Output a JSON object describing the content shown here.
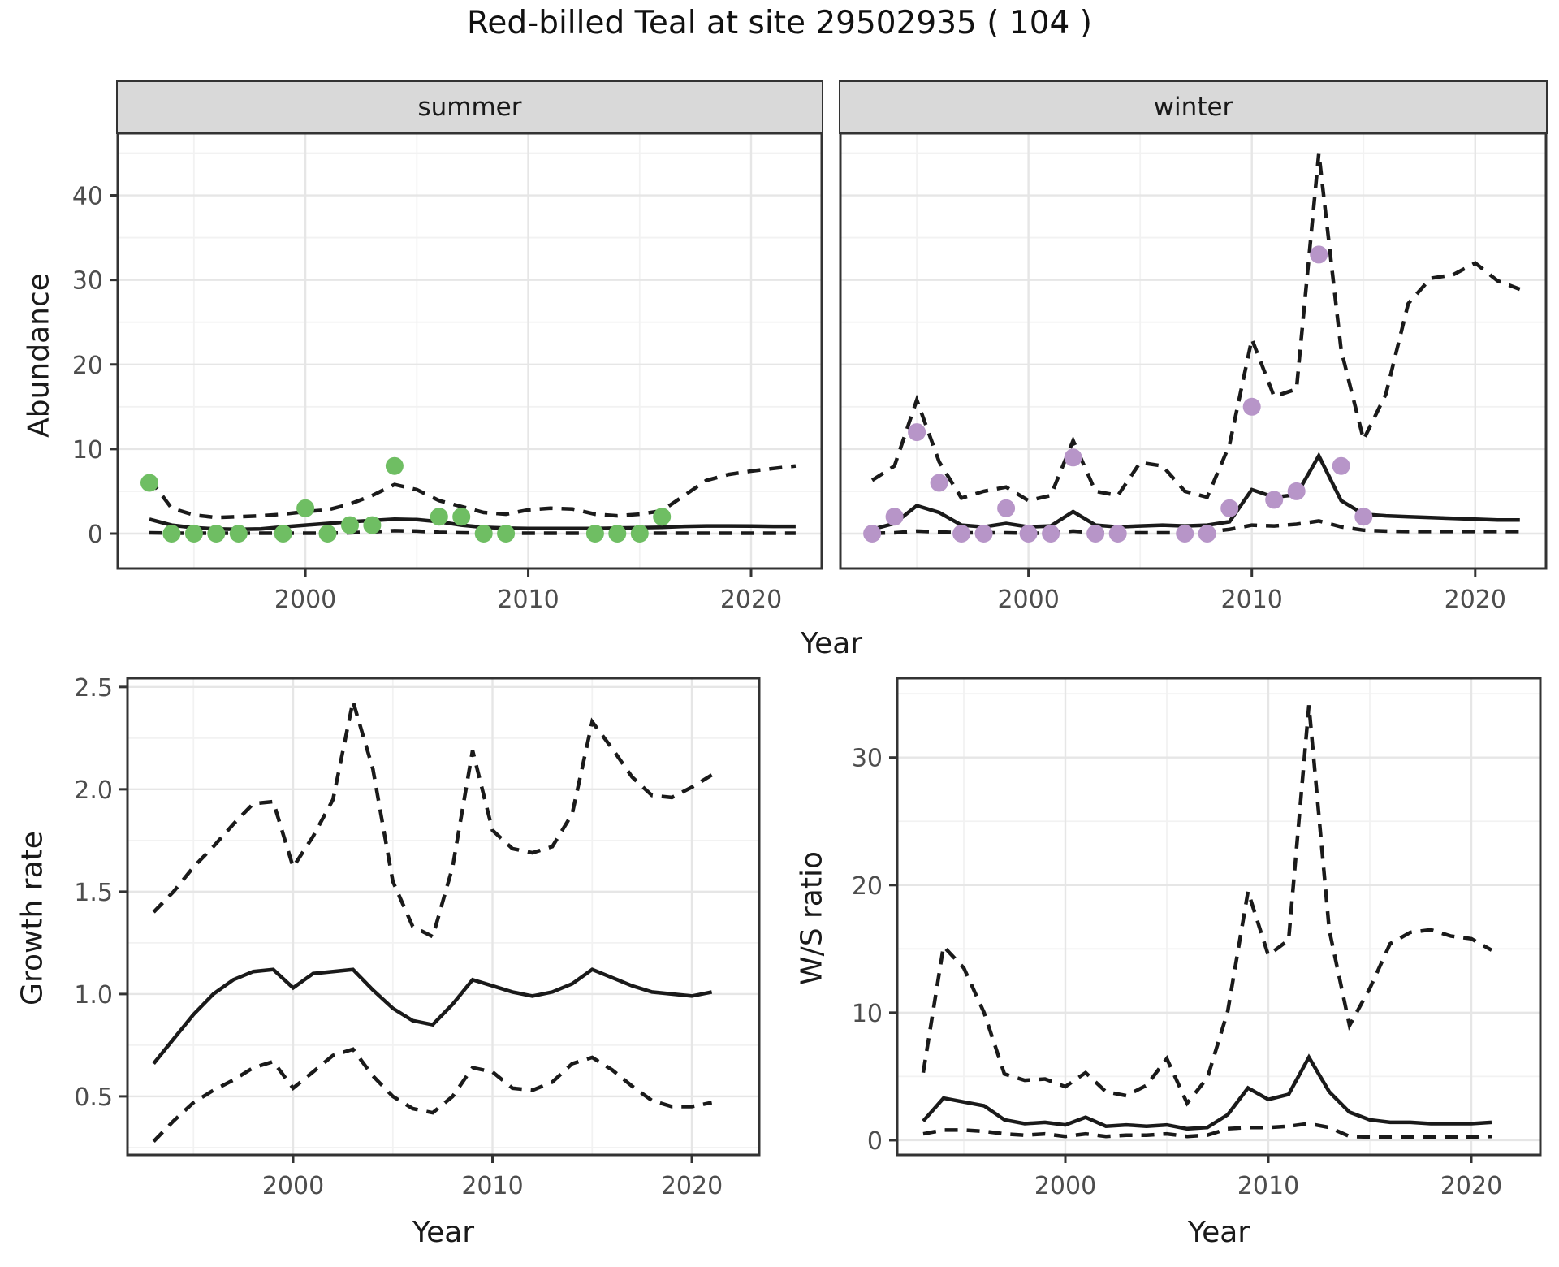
{
  "title": "Red-billed Teal at site 29502935 ( 104 )",
  "facets": {
    "summer": "summer",
    "winter": "winter"
  },
  "axes": {
    "abundance_label": "Abundance",
    "growth_label": "Growth rate",
    "ws_label": "W/S ratio",
    "year_label_top": "Year",
    "year_label_growth": "Year",
    "year_label_ws": "Year"
  },
  "colors": {
    "summer_points": "#6FBE63",
    "winter_points": "#B795C8",
    "line": "#1a1a1a",
    "strip_bg": "#d9d9d9",
    "grid_major": "#e6e6e6",
    "grid_minor": "#f2f2f2",
    "panel_border": "#333333",
    "tick_text": "#4d4d4d"
  },
  "chart_data": [
    {
      "id": "abundance-summer",
      "type": "line",
      "title": "summer",
      "xlabel": "Year",
      "ylabel": "Abundance",
      "xlim": [
        1991.58,
        2023.17
      ],
      "ylim": [
        -4.13,
        47.35
      ],
      "x_ticks": [
        2000,
        2010,
        2020
      ],
      "x_tick_labels": [
        "2000",
        "2010",
        "2020"
      ],
      "x_minor_ticks": [
        1995,
        2005,
        2015
      ],
      "y_ticks": [
        0,
        10,
        20,
        30,
        40
      ],
      "y_tick_labels": [
        "0",
        "10",
        "20",
        "30",
        "40"
      ],
      "y_minor_ticks": [
        5,
        15,
        25,
        35,
        45
      ],
      "show_y_tick_labels": true,
      "years": [
        1993,
        1994,
        1995,
        1996,
        1997,
        1998,
        1999,
        2000,
        2001,
        2002,
        2003,
        2004,
        2005,
        2006,
        2007,
        2008,
        2009,
        2010,
        2011,
        2012,
        2013,
        2014,
        2015,
        2016,
        2017,
        2018,
        2019,
        2020,
        2021,
        2022
      ],
      "series": [
        {
          "name": "upper_ci",
          "style": "dashed",
          "values": [
            6.5,
            3.0,
            2.2,
            1.9,
            2.0,
            2.1,
            2.3,
            2.6,
            2.8,
            3.5,
            4.5,
            5.8,
            5.2,
            3.9,
            3.2,
            2.5,
            2.3,
            2.8,
            3.0,
            2.9,
            2.3,
            2.1,
            2.3,
            2.7,
            4.5,
            6.3,
            7.0,
            7.4,
            7.7,
            8.0
          ]
        },
        {
          "name": "fitted_mean",
          "style": "solid",
          "values": [
            1.7,
            1.0,
            0.7,
            0.55,
            0.5,
            0.55,
            0.8,
            1.0,
            1.2,
            1.4,
            1.55,
            1.7,
            1.65,
            1.4,
            1.0,
            0.75,
            0.65,
            0.6,
            0.6,
            0.6,
            0.6,
            0.65,
            0.7,
            0.75,
            0.85,
            0.9,
            0.9,
            0.88,
            0.85,
            0.85
          ]
        },
        {
          "name": "lower_ci",
          "style": "dashed",
          "values": [
            0.1,
            0.05,
            0.05,
            0.05,
            0.05,
            0.05,
            0.05,
            0.05,
            0.05,
            0.1,
            0.2,
            0.35,
            0.3,
            0.15,
            0.1,
            0.05,
            0.05,
            0.05,
            0.05,
            0.05,
            0.05,
            0.05,
            0.05,
            0.05,
            0.05,
            0.05,
            0.05,
            0.05,
            0.05,
            0.05
          ]
        }
      ],
      "points": {
        "name": "observed-counts-summer",
        "color_key": "summer_points",
        "x": [
          1993,
          1994,
          1995,
          1996,
          1997,
          1999,
          2000,
          2001,
          2002,
          2003,
          2004,
          2006,
          2007,
          2008,
          2009,
          2013,
          2014,
          2015,
          2016
        ],
        "y": [
          6,
          0,
          0,
          0,
          0,
          0,
          3,
          0,
          1,
          1,
          8,
          2,
          2,
          0,
          0,
          0,
          0,
          0,
          2
        ]
      }
    },
    {
      "id": "abundance-winter",
      "type": "line",
      "title": "winter",
      "xlabel": "Year",
      "ylabel": "Abundance",
      "xlim": [
        1991.58,
        2023.17
      ],
      "ylim": [
        -4.13,
        47.35
      ],
      "x_ticks": [
        2000,
        2010,
        2020
      ],
      "x_tick_labels": [
        "2000",
        "2010",
        "2020"
      ],
      "x_minor_ticks": [
        1995,
        2005,
        2015
      ],
      "y_ticks": [
        0,
        10,
        20,
        30,
        40
      ],
      "y_tick_labels": [
        "0",
        "10",
        "20",
        "30",
        "40"
      ],
      "y_minor_ticks": [
        5,
        15,
        25,
        35,
        45
      ],
      "show_y_tick_labels": false,
      "years": [
        1993,
        1994,
        1995,
        1996,
        1997,
        1998,
        1999,
        2000,
        2001,
        2002,
        2003,
        2004,
        2005,
        2006,
        2007,
        2008,
        2009,
        2010,
        2011,
        2012,
        2013,
        2014,
        2015,
        2016,
        2017,
        2018,
        2019,
        2020,
        2021,
        2022
      ],
      "series": [
        {
          "name": "upper_ci",
          "style": "dashed",
          "values": [
            6.3,
            8.0,
            15.8,
            8.5,
            4.2,
            5.0,
            5.5,
            3.9,
            4.5,
            11.0,
            5.0,
            4.5,
            8.4,
            8.0,
            5.0,
            4.3,
            10.5,
            23.0,
            16.2,
            17.1,
            45.0,
            21.7,
            11.1,
            16.5,
            27.2,
            30.2,
            30.6,
            32.0,
            29.9,
            28.9
          ]
        },
        {
          "name": "fitted_mean",
          "style": "solid",
          "values": [
            0.5,
            1.2,
            3.3,
            2.5,
            1.0,
            0.8,
            1.2,
            0.8,
            0.9,
            2.6,
            1.0,
            0.8,
            0.9,
            1.0,
            0.9,
            1.0,
            1.4,
            5.2,
            4.3,
            4.6,
            9.2,
            3.9,
            2.3,
            2.1,
            2.0,
            1.9,
            1.8,
            1.7,
            1.6,
            1.6
          ]
        },
        {
          "name": "lower_ci",
          "style": "dashed",
          "values": [
            0.05,
            0.1,
            0.3,
            0.2,
            0.1,
            0.1,
            0.1,
            0.05,
            0.05,
            0.3,
            0.1,
            0.1,
            0.1,
            0.1,
            0.1,
            0.2,
            0.5,
            1.0,
            0.9,
            1.1,
            1.5,
            0.8,
            0.4,
            0.3,
            0.25,
            0.25,
            0.25,
            0.25,
            0.25,
            0.25
          ]
        }
      ],
      "points": {
        "name": "observed-counts-winter",
        "color_key": "winter_points",
        "x": [
          1993,
          1994,
          1995,
          1996,
          1997,
          1998,
          1999,
          2000,
          2001,
          2002,
          2003,
          2004,
          2007,
          2008,
          2009,
          2010,
          2011,
          2012,
          2013,
          2014,
          2015
        ],
        "y": [
          0,
          2,
          12,
          6,
          0,
          0,
          3,
          0,
          0,
          9,
          0,
          0,
          0,
          0,
          3,
          15,
          4,
          5,
          33,
          8,
          2
        ]
      }
    },
    {
      "id": "growth-rate",
      "type": "line",
      "title": "",
      "xlabel": "Year",
      "ylabel": "Growth rate",
      "xlim": [
        1991.69,
        2023.38
      ],
      "ylim": [
        0.214,
        2.543
      ],
      "x_ticks": [
        2000,
        2010,
        2020
      ],
      "x_tick_labels": [
        "2000",
        "2010",
        "2020"
      ],
      "x_minor_ticks": [
        1995,
        2005,
        2015
      ],
      "y_ticks": [
        0.5,
        1.0,
        1.5,
        2.0,
        2.5
      ],
      "y_tick_labels": [
        "0.5",
        "1.0",
        "1.5",
        "2.0",
        "2.5"
      ],
      "y_minor_ticks": [
        0.25,
        0.75,
        1.25,
        1.75,
        2.25
      ],
      "show_y_tick_labels": true,
      "years": [
        1993,
        1994,
        1995,
        1996,
        1997,
        1998,
        1999,
        2000,
        2001,
        2002,
        2003,
        2004,
        2005,
        2006,
        2007,
        2008,
        2009,
        2010,
        2011,
        2012,
        2013,
        2014,
        2015,
        2016,
        2017,
        2018,
        2019,
        2020,
        2021
      ],
      "series": [
        {
          "name": "upper_ci",
          "style": "dashed",
          "values": [
            1.4,
            1.5,
            1.62,
            1.72,
            1.83,
            1.93,
            1.94,
            1.62,
            1.77,
            1.95,
            2.43,
            2.1,
            1.55,
            1.33,
            1.28,
            1.62,
            2.19,
            1.8,
            1.71,
            1.69,
            1.72,
            1.88,
            2.33,
            2.2,
            2.06,
            1.97,
            1.96,
            2.01,
            2.07
          ]
        },
        {
          "name": "fitted_mean",
          "style": "solid",
          "values": [
            0.66,
            0.78,
            0.9,
            1.0,
            1.07,
            1.11,
            1.12,
            1.03,
            1.1,
            1.11,
            1.12,
            1.02,
            0.93,
            0.87,
            0.85,
            0.95,
            1.07,
            1.04,
            1.01,
            0.99,
            1.01,
            1.05,
            1.12,
            1.08,
            1.04,
            1.01,
            1.0,
            0.99,
            1.01
          ]
        },
        {
          "name": "lower_ci",
          "style": "dashed",
          "values": [
            0.28,
            0.38,
            0.47,
            0.53,
            0.58,
            0.64,
            0.67,
            0.54,
            0.62,
            0.7,
            0.73,
            0.6,
            0.5,
            0.44,
            0.42,
            0.5,
            0.64,
            0.62,
            0.54,
            0.53,
            0.57,
            0.66,
            0.69,
            0.63,
            0.55,
            0.48,
            0.45,
            0.45,
            0.47
          ]
        }
      ],
      "points": null
    },
    {
      "id": "ws-ratio",
      "type": "line",
      "title": "",
      "xlabel": "Year",
      "ylabel": "W/S ratio",
      "xlim": [
        1991.72,
        2023.4
      ],
      "ylim": [
        -1.15,
        36.22
      ],
      "x_ticks": [
        2000,
        2010,
        2020
      ],
      "x_tick_labels": [
        "2000",
        "2010",
        "2020"
      ],
      "x_minor_ticks": [
        1995,
        2005,
        2015
      ],
      "y_ticks": [
        0,
        10,
        20,
        30
      ],
      "y_tick_labels": [
        "0",
        "10",
        "20",
        "30"
      ],
      "y_minor_ticks": [
        5,
        15,
        25,
        35
      ],
      "show_y_tick_labels": true,
      "years": [
        1993,
        1994,
        1995,
        1996,
        1997,
        1998,
        1999,
        2000,
        2001,
        2002,
        2003,
        2004,
        2005,
        2006,
        2007,
        2008,
        2009,
        2010,
        2011,
        2012,
        2013,
        2014,
        2015,
        2016,
        2017,
        2018,
        2019,
        2020,
        2021
      ],
      "series": [
        {
          "name": "upper_ci",
          "style": "dashed",
          "values": [
            5.3,
            15.2,
            13.5,
            10.0,
            5.2,
            4.7,
            4.8,
            4.2,
            5.3,
            3.8,
            3.5,
            4.3,
            6.4,
            2.9,
            4.9,
            10.1,
            19.5,
            14.5,
            15.7,
            34.1,
            16.5,
            9.0,
            11.9,
            15.4,
            16.3,
            16.5,
            16.0,
            15.8,
            14.9
          ]
        },
        {
          "name": "fitted_mean",
          "style": "solid",
          "values": [
            1.5,
            3.3,
            3.0,
            2.7,
            1.6,
            1.3,
            1.4,
            1.2,
            1.8,
            1.1,
            1.2,
            1.1,
            1.2,
            0.9,
            1.0,
            2.0,
            4.1,
            3.2,
            3.6,
            6.5,
            3.8,
            2.2,
            1.6,
            1.4,
            1.4,
            1.3,
            1.3,
            1.3,
            1.4
          ]
        },
        {
          "name": "lower_ci",
          "style": "dashed",
          "values": [
            0.5,
            0.8,
            0.8,
            0.7,
            0.5,
            0.4,
            0.5,
            0.3,
            0.5,
            0.3,
            0.4,
            0.4,
            0.5,
            0.3,
            0.4,
            0.9,
            1.0,
            1.0,
            1.1,
            1.3,
            1.0,
            0.3,
            0.25,
            0.25,
            0.25,
            0.25,
            0.25,
            0.25,
            0.3
          ]
        }
      ],
      "points": null
    }
  ]
}
